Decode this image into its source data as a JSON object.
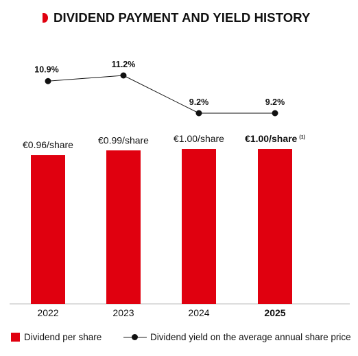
{
  "title": "DIVIDEND PAYMENT AND YIELD HISTORY",
  "colors": {
    "accent": "#e0000f",
    "text": "#111111",
    "line": "#111111"
  },
  "legend": {
    "bars": "Dividend per share",
    "line": "Dividend yield on the average annual share price"
  },
  "chart_data": {
    "type": "bar",
    "categories": [
      "2022",
      "2023",
      "2024",
      "2025"
    ],
    "series": [
      {
        "name": "Dividend per share",
        "type": "bar",
        "values": [
          0.96,
          0.99,
          1.0,
          1.0
        ],
        "labels": [
          "€0.96/share",
          "€0.99/share",
          "€1.00/share",
          "€1.00/share"
        ],
        "label_notes": [
          "",
          "",
          "",
          "(1)"
        ]
      },
      {
        "name": "Dividend yield on the average annual share price",
        "type": "line",
        "values": [
          10.9,
          11.2,
          9.2,
          9.2
        ],
        "labels": [
          "10.9%",
          "11.2%",
          "9.2%",
          "9.2%"
        ]
      }
    ],
    "highlight_category": "2025",
    "grid": false
  }
}
